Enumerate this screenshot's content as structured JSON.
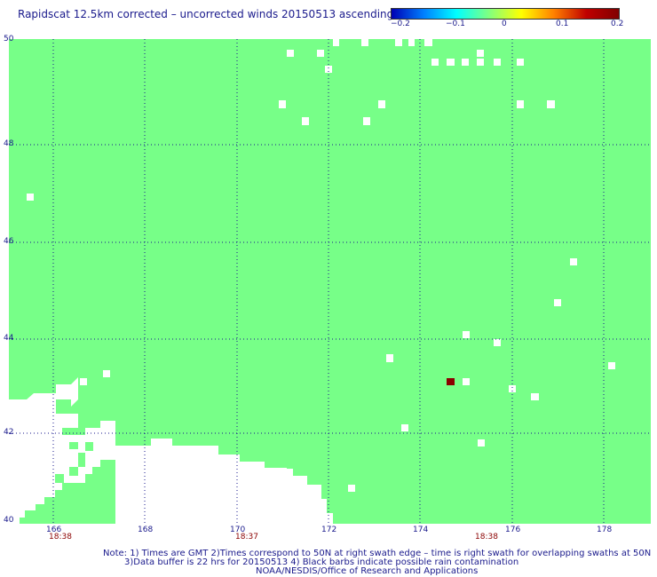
{
  "title": "Rapidscat 12.5km corrected – uncorrected winds 20150513 ascending",
  "colorbar": {
    "labels": [
      "−0.2",
      "−0.1",
      "0",
      "0.1",
      "0.2"
    ],
    "stops": [
      "#0000b4",
      "#0080ff",
      "#00ffff",
      "#80ff80",
      "#ffff00",
      "#ff8000",
      "#c00000",
      "#800000"
    ]
  },
  "map": {
    "background_color": "#77ff88",
    "lat_labels": [
      "50",
      "48",
      "46",
      "44",
      "42",
      "40"
    ],
    "lon_labels": [
      "166",
      "168",
      "170",
      "172",
      "174",
      "176",
      "178"
    ],
    "time_labels": [
      "18:38",
      "18:37",
      "18:38"
    ]
  },
  "notes": {
    "line1": "Note: 1) Times are GMT 2)Times correspond to 50N at right swath edge – time is right swath for overlapping swaths at 50N",
    "line2": "3)Data buffer is 22 hrs for 20150513 4) Black barbs indicate possible rain contamination",
    "line3": "NOAA/NESDIS/Office of Research and Applications"
  }
}
